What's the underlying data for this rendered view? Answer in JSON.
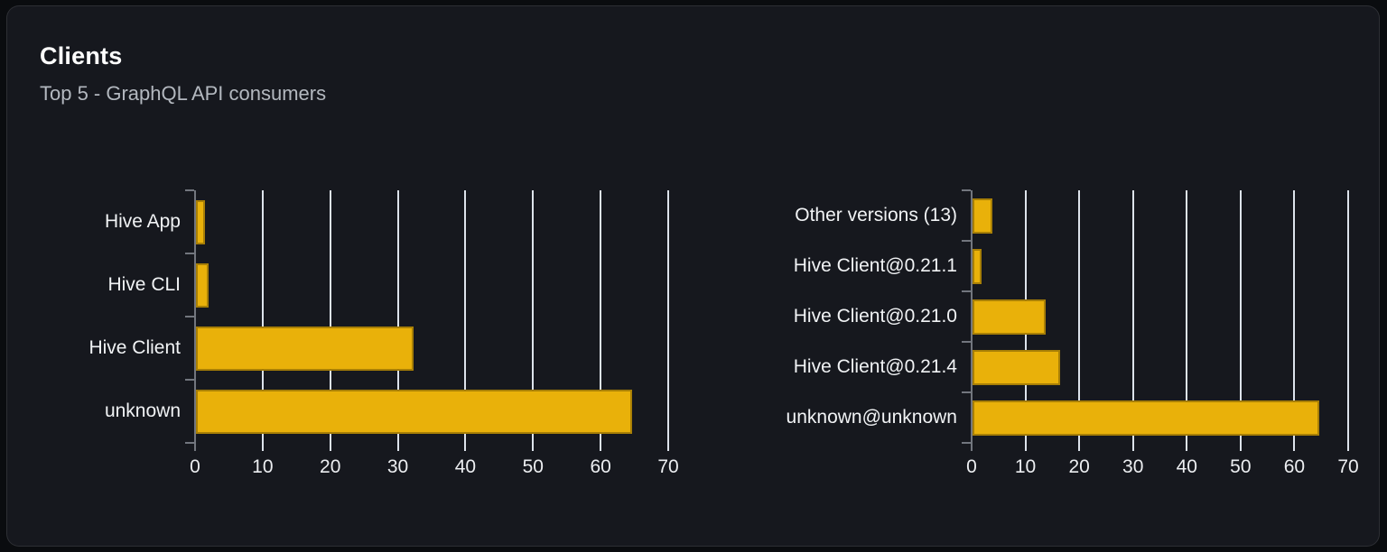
{
  "card": {
    "title": "Clients",
    "subtitle": "Top 5 - GraphQL API consumers"
  },
  "colors": {
    "bar": "#e9b10a",
    "gridline": "#dde3eb",
    "axis": "#72767e",
    "card_background": "#16181e",
    "page_background": "#0a0c0f",
    "label_text": "#f1f3f5",
    "subtitle_text": "#b3b8bf"
  },
  "chart_data": [
    {
      "type": "bar",
      "orientation": "horizontal",
      "name": "clients-by-name",
      "categories": [
        "Hive App",
        "Hive CLI",
        "Hive Client",
        "unknown"
      ],
      "values": [
        1.3,
        1.9,
        32.2,
        64.5
      ],
      "xticks": [
        0,
        10,
        20,
        30,
        40,
        50,
        60,
        70
      ],
      "xlim": [
        0,
        70
      ],
      "grid": true,
      "legend": false
    },
    {
      "type": "bar",
      "orientation": "horizontal",
      "name": "clients-by-version",
      "categories": [
        "Other versions (13)",
        "Hive Client@0.21.1",
        "Hive Client@0.21.0",
        "Hive Client@0.21.4",
        "unknown@unknown"
      ],
      "values": [
        3.7,
        1.7,
        13.6,
        16.3,
        64.4
      ],
      "xticks": [
        0,
        10,
        20,
        30,
        40,
        50,
        60,
        70
      ],
      "xlim": [
        0,
        70
      ],
      "grid": true,
      "legend": false
    }
  ]
}
